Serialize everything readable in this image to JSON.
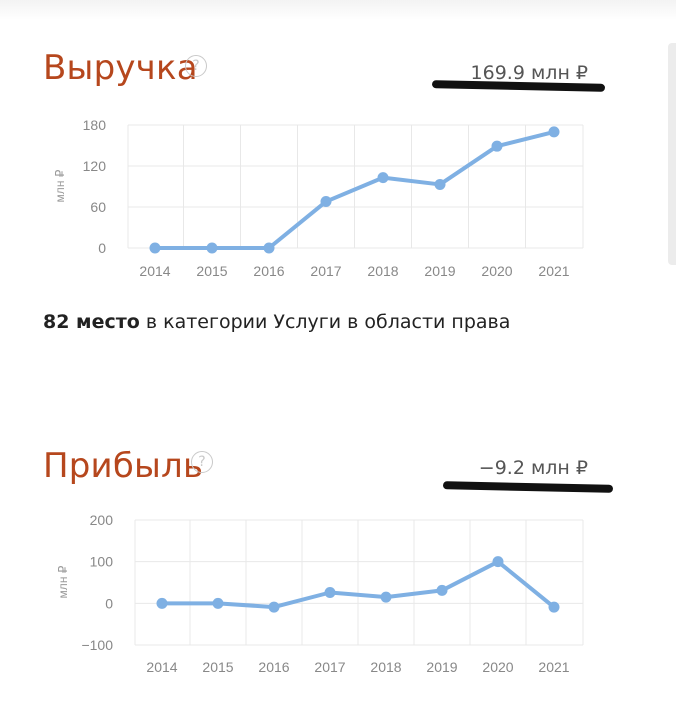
{
  "revenue": {
    "title": "Выручка",
    "total": "169.9 млн ₽",
    "help_glyph": "?"
  },
  "profit": {
    "title": "Прибыль",
    "total": "−9.2 млн ₽",
    "help_glyph": "?"
  },
  "rank": {
    "bold": "82 место",
    "rest": " в категории Услуги в области права"
  },
  "colors": {
    "title": "#b6471d",
    "line": "#7fb0e3",
    "grid": "#e8e8e8",
    "tick": "#888888"
  },
  "chart_data": [
    {
      "type": "line",
      "title": "Выручка",
      "ylabel": "млн ₽",
      "x": [
        "2014",
        "2015",
        "2016",
        "2017",
        "2018",
        "2019",
        "2020",
        "2021"
      ],
      "yticks": [
        0,
        60,
        120,
        180
      ],
      "ylim": [
        0,
        180
      ],
      "series": [
        {
          "values": [
            0,
            0,
            0,
            68,
            103,
            93,
            149,
            169.9
          ]
        }
      ],
      "grid": true
    },
    {
      "type": "line",
      "title": "Прибыль",
      "ylabel": "млн ₽",
      "x": [
        "2014",
        "2015",
        "2016",
        "2017",
        "2018",
        "2019",
        "2020",
        "2021"
      ],
      "yticks": [
        -100,
        0,
        100,
        200
      ],
      "ylim": [
        -100,
        200
      ],
      "series": [
        {
          "values": [
            0,
            0,
            -9,
            26,
            15,
            31,
            100,
            -9.2
          ]
        }
      ],
      "grid": true
    }
  ]
}
